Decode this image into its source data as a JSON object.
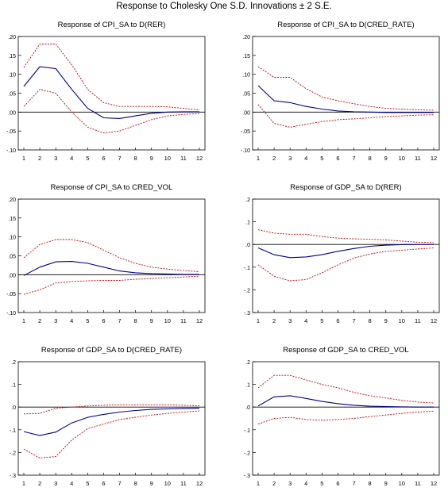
{
  "title": "Response to Cholesky One S.D. Innovations ± 2 S.E.",
  "colors": {
    "response": "#00008b",
    "bands": "#cc0000",
    "zero": "#000000",
    "axis": "#000000"
  },
  "chart_data": [
    {
      "type": "line",
      "title": "Response of CPI_SA to D(RER)",
      "x": [
        1,
        2,
        3,
        4,
        5,
        6,
        7,
        8,
        9,
        10,
        11,
        12
      ],
      "ylim": [
        -0.1,
        0.2
      ],
      "y_ticks": [
        ".20",
        ".15",
        ".10",
        ".05",
        ".00",
        "-.05",
        "-.10"
      ],
      "y_tick_values": [
        0.2,
        0.15,
        0.1,
        0.05,
        0.0,
        -0.05,
        -0.1
      ],
      "x_tick_labels": [
        "1",
        "2",
        "3",
        "4",
        "5",
        "6",
        "7",
        "8",
        "9",
        "10",
        "11",
        "12"
      ],
      "grid": false,
      "series": [
        {
          "role": "response",
          "values": [
            0.068,
            0.12,
            0.115,
            0.06,
            0.01,
            -0.015,
            -0.017,
            -0.01,
            -0.003,
            0.0,
            0.001,
            0.001
          ]
        },
        {
          "role": "upper",
          "values": [
            0.118,
            0.18,
            0.18,
            0.125,
            0.06,
            0.025,
            0.015,
            0.015,
            0.015,
            0.014,
            0.01,
            0.006
          ]
        },
        {
          "role": "lower",
          "values": [
            0.015,
            0.06,
            0.05,
            0.0,
            -0.04,
            -0.055,
            -0.05,
            -0.035,
            -0.02,
            -0.01,
            -0.006,
            -0.004
          ]
        }
      ]
    },
    {
      "type": "line",
      "title": "Response of CPI_SA to D(CRED_RATE)",
      "x": [
        1,
        2,
        3,
        4,
        5,
        6,
        7,
        8,
        9,
        10,
        11,
        12
      ],
      "ylim": [
        -0.1,
        0.2
      ],
      "y_ticks": [
        ".20",
        ".15",
        ".10",
        ".05",
        ".00",
        "-.05",
        "-.10"
      ],
      "y_tick_values": [
        0.2,
        0.15,
        0.1,
        0.05,
        0.0,
        -0.05,
        -0.1
      ],
      "x_tick_labels": [
        "1",
        "2",
        "3",
        "4",
        "5",
        "6",
        "7",
        "8",
        "9",
        "10",
        "11",
        "12"
      ],
      "grid": false,
      "series": [
        {
          "role": "response",
          "values": [
            0.07,
            0.03,
            0.025,
            0.015,
            0.008,
            0.003,
            0.001,
            0.0,
            -0.001,
            -0.001,
            -0.001,
            -0.001
          ]
        },
        {
          "role": "upper",
          "values": [
            0.12,
            0.092,
            0.092,
            0.062,
            0.04,
            0.03,
            0.022,
            0.015,
            0.01,
            0.008,
            0.006,
            0.005
          ]
        },
        {
          "role": "lower",
          "values": [
            0.02,
            -0.03,
            -0.04,
            -0.032,
            -0.025,
            -0.02,
            -0.018,
            -0.015,
            -0.012,
            -0.01,
            -0.008,
            -0.007
          ]
        }
      ]
    },
    {
      "type": "line",
      "title": "Response of CPI_SA to CRED_VOL",
      "x": [
        1,
        2,
        3,
        4,
        5,
        6,
        7,
        8,
        9,
        10,
        11,
        12
      ],
      "ylim": [
        -0.1,
        0.2
      ],
      "y_ticks": [
        ".20",
        ".15",
        ".10",
        ".05",
        ".00",
        "-.05",
        "-.10"
      ],
      "y_tick_values": [
        0.2,
        0.15,
        0.1,
        0.05,
        0.0,
        -0.05,
        -0.1
      ],
      "x_tick_labels": [
        "1",
        "2",
        "3",
        "4",
        "5",
        "6",
        "7",
        "8",
        "9",
        "10",
        "11",
        "12"
      ],
      "grid": false,
      "series": [
        {
          "role": "response",
          "values": [
            -0.002,
            0.02,
            0.034,
            0.035,
            0.03,
            0.02,
            0.01,
            0.005,
            0.003,
            0.002,
            0.001,
            0.001
          ]
        },
        {
          "role": "upper",
          "values": [
            0.045,
            0.08,
            0.093,
            0.093,
            0.085,
            0.065,
            0.045,
            0.03,
            0.02,
            0.015,
            0.011,
            0.008
          ]
        },
        {
          "role": "lower",
          "values": [
            -0.052,
            -0.04,
            -0.022,
            -0.018,
            -0.016,
            -0.015,
            -0.015,
            -0.012,
            -0.01,
            -0.008,
            -0.006,
            -0.004
          ]
        }
      ]
    },
    {
      "type": "line",
      "title": "Response of GDP_SA to D(RER)",
      "x": [
        1,
        2,
        3,
        4,
        5,
        6,
        7,
        8,
        9,
        10,
        11,
        12
      ],
      "ylim": [
        -0.3,
        0.2
      ],
      "y_ticks": [
        ".2",
        ".1",
        ".0",
        "-.1",
        "-.2",
        "-.3"
      ],
      "y_tick_values": [
        0.2,
        0.1,
        0.0,
        -0.1,
        -0.2,
        -0.3
      ],
      "x_tick_labels": [
        "1",
        "2",
        "3",
        "4",
        "5",
        "6",
        "7",
        "8",
        "9",
        "10",
        "11",
        "12"
      ],
      "grid": false,
      "series": [
        {
          "role": "response",
          "values": [
            -0.015,
            -0.045,
            -0.058,
            -0.055,
            -0.045,
            -0.03,
            -0.018,
            -0.008,
            -0.003,
            -0.001,
            0.0,
            0.0
          ]
        },
        {
          "role": "upper",
          "values": [
            0.065,
            0.05,
            0.045,
            0.045,
            0.035,
            0.028,
            0.025,
            0.023,
            0.02,
            0.015,
            0.01,
            0.008
          ]
        },
        {
          "role": "lower",
          "values": [
            -0.09,
            -0.14,
            -0.16,
            -0.155,
            -0.125,
            -0.09,
            -0.06,
            -0.042,
            -0.03,
            -0.025,
            -0.02,
            -0.015
          ]
        }
      ]
    },
    {
      "type": "line",
      "title": "Response of GDP_SA to D(CRED_RATE)",
      "x": [
        1,
        2,
        3,
        4,
        5,
        6,
        7,
        8,
        9,
        10,
        11,
        12
      ],
      "ylim": [
        -0.3,
        0.2
      ],
      "y_ticks": [
        ".2",
        ".1",
        ".0",
        "-.1",
        "-.2",
        "-.3"
      ],
      "y_tick_values": [
        0.2,
        0.1,
        0.0,
        -0.1,
        -0.2,
        -0.3
      ],
      "x_tick_labels": [
        "1",
        "2",
        "3",
        "4",
        "5",
        "6",
        "7",
        "8",
        "9",
        "10",
        "11",
        "12"
      ],
      "grid": false,
      "series": [
        {
          "role": "response",
          "values": [
            -0.108,
            -0.125,
            -0.11,
            -0.07,
            -0.045,
            -0.032,
            -0.022,
            -0.015,
            -0.01,
            -0.008,
            -0.006,
            -0.005
          ]
        },
        {
          "role": "upper",
          "values": [
            -0.03,
            -0.028,
            -0.005,
            0.0,
            0.005,
            0.008,
            0.01,
            0.01,
            0.01,
            0.01,
            0.008,
            0.006
          ]
        },
        {
          "role": "lower",
          "values": [
            -0.185,
            -0.225,
            -0.218,
            -0.145,
            -0.095,
            -0.075,
            -0.055,
            -0.045,
            -0.035,
            -0.028,
            -0.022,
            -0.017
          ]
        }
      ]
    },
    {
      "type": "line",
      "title": "Response of GDP_SA to CRED_VOL",
      "x": [
        1,
        2,
        3,
        4,
        5,
        6,
        7,
        8,
        9,
        10,
        11,
        12
      ],
      "ylim": [
        -0.3,
        0.2
      ],
      "y_ticks": [
        ".2",
        ".1",
        ".0",
        "-.1",
        "-.2",
        "-.3"
      ],
      "y_tick_values": [
        0.2,
        0.1,
        0.0,
        -0.1,
        -0.2,
        -0.3
      ],
      "x_tick_labels": [
        "1",
        "2",
        "3",
        "4",
        "5",
        "6",
        "7",
        "8",
        "9",
        "10",
        "11",
        "12"
      ],
      "grid": false,
      "series": [
        {
          "role": "response",
          "values": [
            0.005,
            0.045,
            0.05,
            0.038,
            0.025,
            0.015,
            0.008,
            0.004,
            0.002,
            0.001,
            0.0,
            0.0
          ]
        },
        {
          "role": "upper",
          "values": [
            0.085,
            0.14,
            0.14,
            0.12,
            0.1,
            0.085,
            0.065,
            0.05,
            0.04,
            0.03,
            0.022,
            0.018
          ]
        },
        {
          "role": "lower",
          "values": [
            -0.075,
            -0.05,
            -0.045,
            -0.055,
            -0.058,
            -0.055,
            -0.05,
            -0.042,
            -0.035,
            -0.028,
            -0.022,
            -0.018
          ]
        }
      ]
    }
  ]
}
